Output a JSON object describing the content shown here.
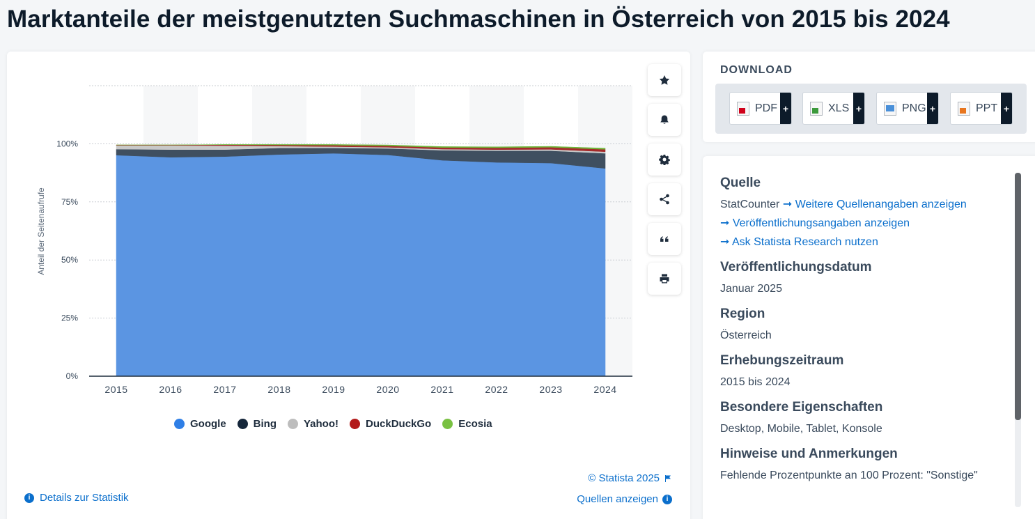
{
  "title": "Marktanteile der meistgenutzten Suchmaschinen in Österreich von 2015 bis 2024",
  "chart_data": {
    "type": "area",
    "stacked": true,
    "ylabel": "Anteil der Seitenaufrufe",
    "categories": [
      "2015",
      "2016",
      "2017",
      "2018",
      "2019",
      "2020",
      "2021",
      "2022",
      "2023",
      "2024"
    ],
    "yticks": [
      "0%",
      "25%",
      "50%",
      "75%",
      "100%"
    ],
    "ylim": [
      0,
      125
    ],
    "series": [
      {
        "name": "Google",
        "color": "#5b95e2",
        "values": [
          95.1,
          94.2,
          94.5,
          95.4,
          95.9,
          95.2,
          92.9,
          92.0,
          91.7,
          89.4
        ]
      },
      {
        "name": "Bing",
        "color": "#3f4f60",
        "values": [
          2.6,
          3.3,
          3.0,
          2.8,
          2.3,
          2.8,
          4.3,
          5.0,
          5.3,
          6.5
        ]
      },
      {
        "name": "Yahoo!",
        "color": "#c8c8c8",
        "values": [
          1.6,
          1.8,
          1.7,
          0.8,
          0.6,
          0.5,
          0.5,
          0.5,
          0.6,
          0.7
        ]
      },
      {
        "name": "DuckDuckGo",
        "color": "#a52a2a",
        "values": [
          0.2,
          0.2,
          0.4,
          0.5,
          0.6,
          0.6,
          0.7,
          0.8,
          0.9,
          1.0
        ]
      },
      {
        "name": "Ecosia",
        "color": "#6fb63a",
        "values": [
          0.0,
          0.0,
          0.1,
          0.2,
          0.3,
          0.4,
          0.4,
          0.4,
          0.4,
          0.5
        ]
      }
    ],
    "grid": true,
    "legend_position": "bottom"
  },
  "footer": {
    "copyright": "© Statista 2025",
    "sources": "Quellen anzeigen",
    "details": "Details zur Statistik"
  },
  "download": {
    "title": "DOWNLOAD",
    "buttons": [
      "PDF",
      "XLS",
      "PNG",
      "PPT"
    ],
    "plus": "+"
  },
  "meta": {
    "source_title": "Quelle",
    "source": "StatCounter",
    "link1": "Weitere Quellenangaben anzeigen",
    "link2": "Veröffentlichungsangaben anzeigen",
    "link3": "Ask Statista Research nutzen",
    "pub_title": "Veröffentlichungsdatum",
    "pub_value": "Januar 2025",
    "region_title": "Region",
    "region_value": "Österreich",
    "period_title": "Erhebungszeitraum",
    "period_value": "2015 bis 2024",
    "special_title": "Besondere Eigenschaften",
    "special_value": "Desktop, Mobile, Tablet, Konsole",
    "notes_title": "Hinweise und Anmerkungen",
    "notes_value": "Fehlende Prozentpunkte an 100 Prozent: \"Sonstige\""
  },
  "icons": {
    "tools": [
      "star-icon",
      "bell-icon",
      "gear-icon",
      "share-icon",
      "quote-icon",
      "print-icon"
    ]
  }
}
